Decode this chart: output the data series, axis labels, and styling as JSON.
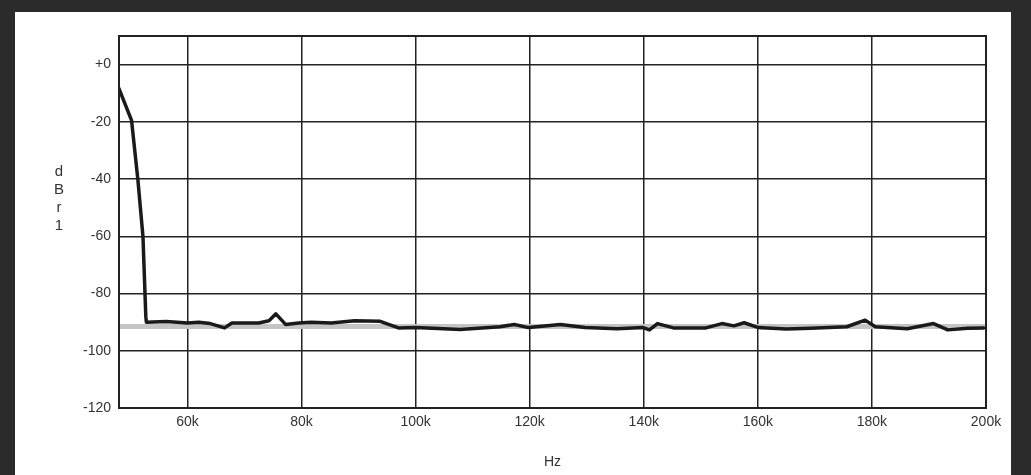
{
  "chart_data": {
    "type": "line",
    "xlabel": "Hz",
    "ylabel": "dBr 1",
    "xlim": [
      48000,
      200000
    ],
    "xticks": [
      {
        "value": 60000,
        "label": "60k"
      },
      {
        "value": 80000,
        "label": "80k"
      },
      {
        "value": 100000,
        "label": "100k"
      },
      {
        "value": 120000,
        "label": "120k"
      },
      {
        "value": 140000,
        "label": "140k"
      },
      {
        "value": 160000,
        "label": "160k"
      },
      {
        "value": 180000,
        "label": "180k"
      },
      {
        "value": 200000,
        "label": "200k"
      }
    ],
    "ylim": [
      -120,
      10
    ],
    "yticks": [
      -120,
      -100,
      -80,
      -60,
      -40,
      -20,
      {
        "value": 0,
        "label": "+0"
      }
    ],
    "grid": true,
    "legend": false,
    "marker": "none",
    "line_style": "solid",
    "series": [
      {
        "color": "#c4c4c4",
        "x": [
          48000,
          200000
        ],
        "values": [
          -91.5,
          -91.5
        ]
      },
      {
        "color": "#1a1a1a",
        "x": [
          48000,
          50200,
          51300,
          52200,
          52700,
          52800,
          56300,
          60000,
          62000,
          64000,
          66500,
          67800,
          72500,
          74300,
          75500,
          77200,
          79500,
          81700,
          85200,
          89300,
          93800,
          97000,
          100000,
          107800,
          114800,
          117300,
          119800,
          125400,
          129700,
          135300,
          139900,
          141000,
          142400,
          145200,
          150900,
          153700,
          155800,
          157600,
          160100,
          165000,
          169300,
          175600,
          178800,
          180600,
          186200,
          190800,
          193300,
          196800,
          199600
        ],
        "values": [
          -8.4,
          -19.5,
          -40,
          -60,
          -88,
          -90,
          -89.8,
          -90.3,
          -90,
          -90.5,
          -92,
          -90.3,
          -90.3,
          -89.5,
          -87.1,
          -90.8,
          -90.3,
          -90,
          -90.3,
          -89.5,
          -89.7,
          -92,
          -91.9,
          -92.6,
          -91.6,
          -90.8,
          -91.9,
          -90.8,
          -91.9,
          -92.3,
          -91.9,
          -92.7,
          -90.5,
          -92,
          -92,
          -90.5,
          -91.3,
          -90.2,
          -91.9,
          -92.4,
          -92.1,
          -91.6,
          -89.3,
          -91.6,
          -92.3,
          -90.5,
          -92.7,
          -92.1,
          -92
        ]
      }
    ]
  }
}
